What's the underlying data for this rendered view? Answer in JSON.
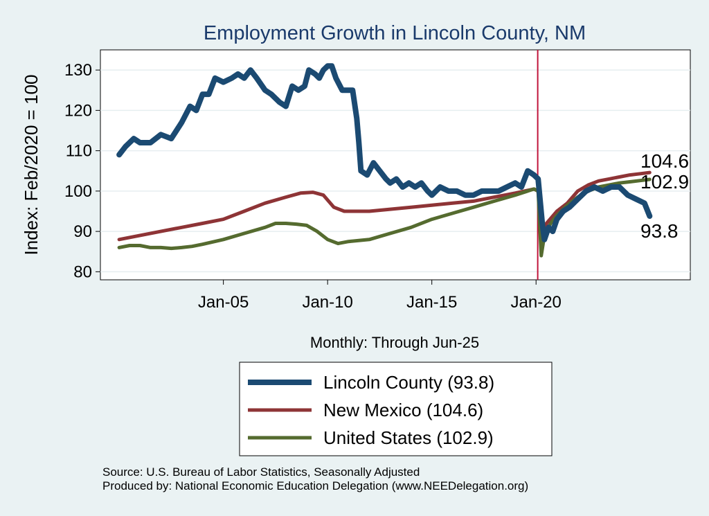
{
  "chart_data": {
    "type": "line",
    "title": "Employment Growth in Lincoln  County, NM",
    "ylabel": "Index: Feb/2020 = 100",
    "xlabel": "Monthly: Through Jun-25",
    "ylim": [
      78,
      135
    ],
    "xlim": [
      1999.1,
      2027.4
    ],
    "yticks": [
      80,
      90,
      100,
      110,
      120,
      130
    ],
    "xticks": [
      {
        "label": "Jan-05",
        "value": 2005
      },
      {
        "label": "Jan-10",
        "value": 2010
      },
      {
        "label": "Jan-15",
        "value": 2015
      },
      {
        "label": "Jan-20",
        "value": 2020
      }
    ],
    "reference_line": 2020.08,
    "series": [
      {
        "name": "Lincoln  County",
        "legend": "Lincoln  County (93.8)",
        "end_label": "93.8",
        "color": "#1b4a72",
        "width": 8,
        "points": [
          [
            2000.0,
            109
          ],
          [
            2000.3,
            111
          ],
          [
            2000.7,
            113
          ],
          [
            2001.0,
            112
          ],
          [
            2001.5,
            112
          ],
          [
            2002.0,
            114
          ],
          [
            2002.5,
            113
          ],
          [
            2003.0,
            117
          ],
          [
            2003.4,
            121
          ],
          [
            2003.7,
            120
          ],
          [
            2004.0,
            124
          ],
          [
            2004.3,
            124
          ],
          [
            2004.6,
            128
          ],
          [
            2005.0,
            127
          ],
          [
            2005.4,
            128
          ],
          [
            2005.7,
            129
          ],
          [
            2006.0,
            128
          ],
          [
            2006.3,
            130
          ],
          [
            2006.6,
            128
          ],
          [
            2007.0,
            125
          ],
          [
            2007.3,
            124
          ],
          [
            2007.7,
            122
          ],
          [
            2008.0,
            121
          ],
          [
            2008.3,
            126
          ],
          [
            2008.6,
            125
          ],
          [
            2008.9,
            126
          ],
          [
            2009.1,
            130
          ],
          [
            2009.4,
            129
          ],
          [
            2009.6,
            128
          ],
          [
            2009.8,
            130
          ],
          [
            2010.0,
            131
          ],
          [
            2010.2,
            131
          ],
          [
            2010.4,
            128
          ],
          [
            2010.7,
            125
          ],
          [
            2011.0,
            125
          ],
          [
            2011.2,
            125
          ],
          [
            2011.4,
            118
          ],
          [
            2011.5,
            112
          ],
          [
            2011.6,
            105
          ],
          [
            2011.9,
            104
          ],
          [
            2012.2,
            107
          ],
          [
            2012.5,
            105
          ],
          [
            2012.8,
            103
          ],
          [
            2013.0,
            102
          ],
          [
            2013.3,
            103
          ],
          [
            2013.6,
            101
          ],
          [
            2013.9,
            102
          ],
          [
            2014.2,
            101
          ],
          [
            2014.5,
            102
          ],
          [
            2014.8,
            100
          ],
          [
            2015.0,
            99
          ],
          [
            2015.4,
            101
          ],
          [
            2015.8,
            100
          ],
          [
            2016.2,
            100
          ],
          [
            2016.6,
            99
          ],
          [
            2017.0,
            99
          ],
          [
            2017.4,
            100
          ],
          [
            2017.8,
            100
          ],
          [
            2018.2,
            100
          ],
          [
            2018.6,
            101
          ],
          [
            2019.0,
            102
          ],
          [
            2019.3,
            101
          ],
          [
            2019.6,
            105
          ],
          [
            2019.9,
            104
          ],
          [
            2020.1,
            103
          ],
          [
            2020.3,
            92
          ],
          [
            2020.4,
            88
          ],
          [
            2020.6,
            91
          ],
          [
            2020.8,
            90
          ],
          [
            2021.0,
            93
          ],
          [
            2021.3,
            95
          ],
          [
            2021.6,
            96
          ],
          [
            2022.0,
            98
          ],
          [
            2022.4,
            100
          ],
          [
            2022.8,
            101
          ],
          [
            2023.2,
            100
          ],
          [
            2023.6,
            101
          ],
          [
            2024.0,
            101
          ],
          [
            2024.4,
            99
          ],
          [
            2024.8,
            98
          ],
          [
            2025.2,
            97
          ],
          [
            2025.45,
            93.8
          ]
        ]
      },
      {
        "name": "New Mexico",
        "legend": "New Mexico (104.6)",
        "end_label": "104.6",
        "color": "#8e3436",
        "width": 5,
        "points": [
          [
            2000.0,
            88
          ],
          [
            2001.0,
            89
          ],
          [
            2002.0,
            90
          ],
          [
            2003.0,
            91
          ],
          [
            2004.0,
            92
          ],
          [
            2005.0,
            93
          ],
          [
            2006.0,
            95
          ],
          [
            2007.0,
            97
          ],
          [
            2008.0,
            98.5
          ],
          [
            2008.7,
            99.5
          ],
          [
            2009.3,
            99.7
          ],
          [
            2009.8,
            99
          ],
          [
            2010.3,
            96
          ],
          [
            2010.8,
            95
          ],
          [
            2011.3,
            95
          ],
          [
            2012.0,
            95
          ],
          [
            2013.0,
            95.5
          ],
          [
            2014.0,
            96
          ],
          [
            2015.0,
            96.5
          ],
          [
            2016.0,
            97
          ],
          [
            2017.0,
            97.5
          ],
          [
            2018.0,
            98.5
          ],
          [
            2019.0,
            99.5
          ],
          [
            2019.9,
            100.5
          ],
          [
            2020.1,
            100
          ],
          [
            2020.3,
            87
          ],
          [
            2020.5,
            92
          ],
          [
            2021.0,
            95
          ],
          [
            2021.5,
            97
          ],
          [
            2022.0,
            100
          ],
          [
            2022.5,
            101.5
          ],
          [
            2023.0,
            102.5
          ],
          [
            2023.5,
            103
          ],
          [
            2024.0,
            103.5
          ],
          [
            2024.5,
            104
          ],
          [
            2025.0,
            104.3
          ],
          [
            2025.45,
            104.6
          ]
        ]
      },
      {
        "name": "United States",
        "legend": "United States (102.9)",
        "end_label": "102.9",
        "color": "#556b2f",
        "width": 5,
        "points": [
          [
            2000.0,
            86
          ],
          [
            2000.5,
            86.5
          ],
          [
            2001.0,
            86.5
          ],
          [
            2001.5,
            86
          ],
          [
            2002.0,
            86
          ],
          [
            2002.5,
            85.8
          ],
          [
            2003.0,
            86
          ],
          [
            2003.5,
            86.3
          ],
          [
            2004.0,
            86.8
          ],
          [
            2005.0,
            88
          ],
          [
            2006.0,
            89.5
          ],
          [
            2007.0,
            91
          ],
          [
            2007.5,
            92
          ],
          [
            2008.0,
            92
          ],
          [
            2008.5,
            91.8
          ],
          [
            2009.0,
            91.5
          ],
          [
            2009.5,
            90
          ],
          [
            2010.0,
            88
          ],
          [
            2010.5,
            87
          ],
          [
            2011.0,
            87.5
          ],
          [
            2012.0,
            88
          ],
          [
            2013.0,
            89.5
          ],
          [
            2014.0,
            91
          ],
          [
            2015.0,
            93
          ],
          [
            2016.0,
            94.5
          ],
          [
            2017.0,
            96
          ],
          [
            2018.0,
            97.5
          ],
          [
            2019.0,
            99
          ],
          [
            2019.9,
            100.5
          ],
          [
            2020.1,
            100
          ],
          [
            2020.25,
            84
          ],
          [
            2020.4,
            89
          ],
          [
            2020.7,
            92
          ],
          [
            2021.0,
            94
          ],
          [
            2021.5,
            96.5
          ],
          [
            2022.0,
            98.5
          ],
          [
            2022.5,
            100
          ],
          [
            2023.0,
            101
          ],
          [
            2023.5,
            101.5
          ],
          [
            2024.0,
            102
          ],
          [
            2024.5,
            102.3
          ],
          [
            2025.0,
            102.6
          ],
          [
            2025.45,
            102.9
          ]
        ]
      }
    ]
  },
  "source_line_1": "Source: U.S. Bureau of Labor Statistics, Seasonally Adjusted",
  "source_line_2": "Produced by: National Economic Education Delegation (www.NEEDelegation.org)"
}
